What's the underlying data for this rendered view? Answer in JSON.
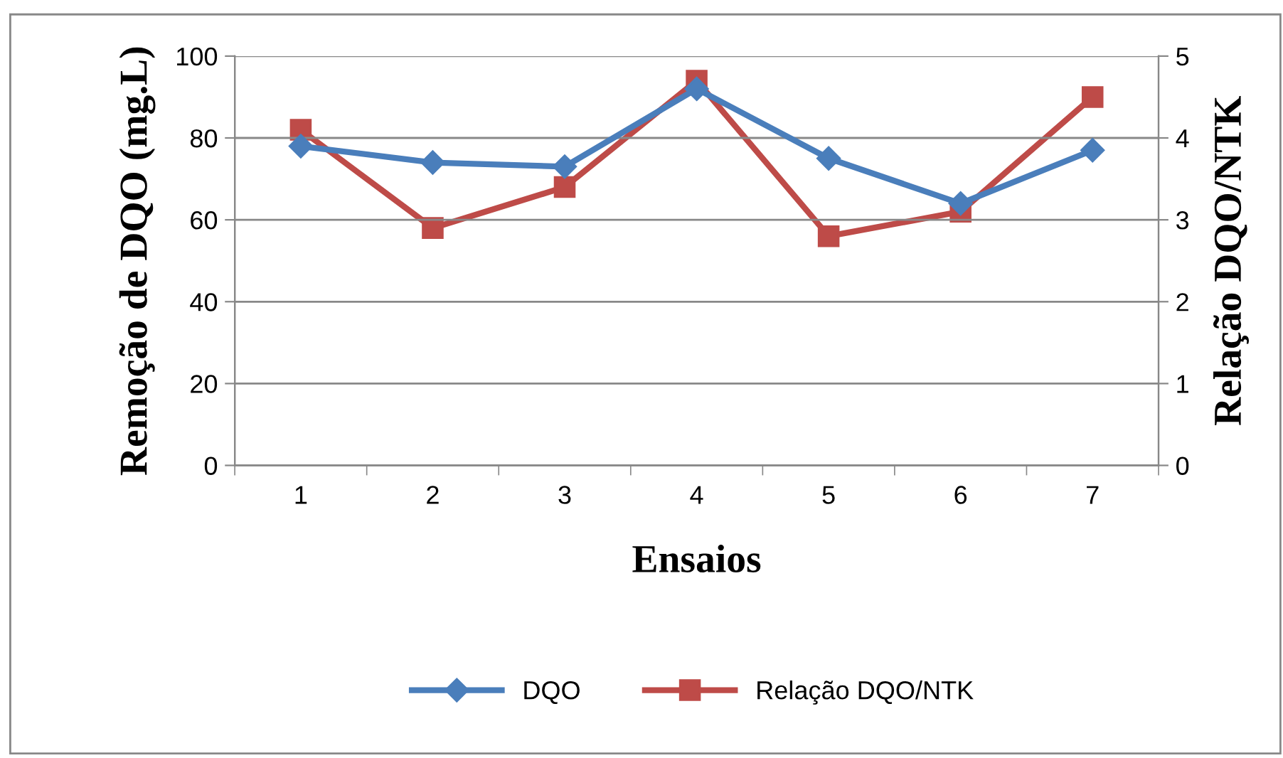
{
  "chart_data": {
    "type": "line",
    "xlabel": "Ensaios",
    "ylabel": "Remoção de DQO (mg.L)",
    "y2label": "Relação DQO/NTK",
    "categories": [
      "1",
      "2",
      "3",
      "4",
      "5",
      "6",
      "7"
    ],
    "series": [
      {
        "name": "DQO",
        "color": "#4a7ebb",
        "marker": "diamond",
        "values": [
          78,
          74,
          73,
          92,
          75,
          64,
          77
        ]
      },
      {
        "name": "Relação DQO/NTK",
        "color": "#be4b48",
        "marker": "square",
        "axis": "y2",
        "values": [
          4.1,
          2.9,
          3.4,
          4.7,
          2.8,
          3.1,
          4.5
        ]
      }
    ],
    "ylim": [
      0,
      100
    ],
    "yticks": [
      0,
      20,
      40,
      60,
      80,
      100
    ],
    "y2lim": [
      0,
      5
    ],
    "y2ticks": [
      0,
      1,
      2,
      3,
      4,
      5
    ],
    "grid": "y",
    "legend": "bottom",
    "line_style": "solid"
  }
}
